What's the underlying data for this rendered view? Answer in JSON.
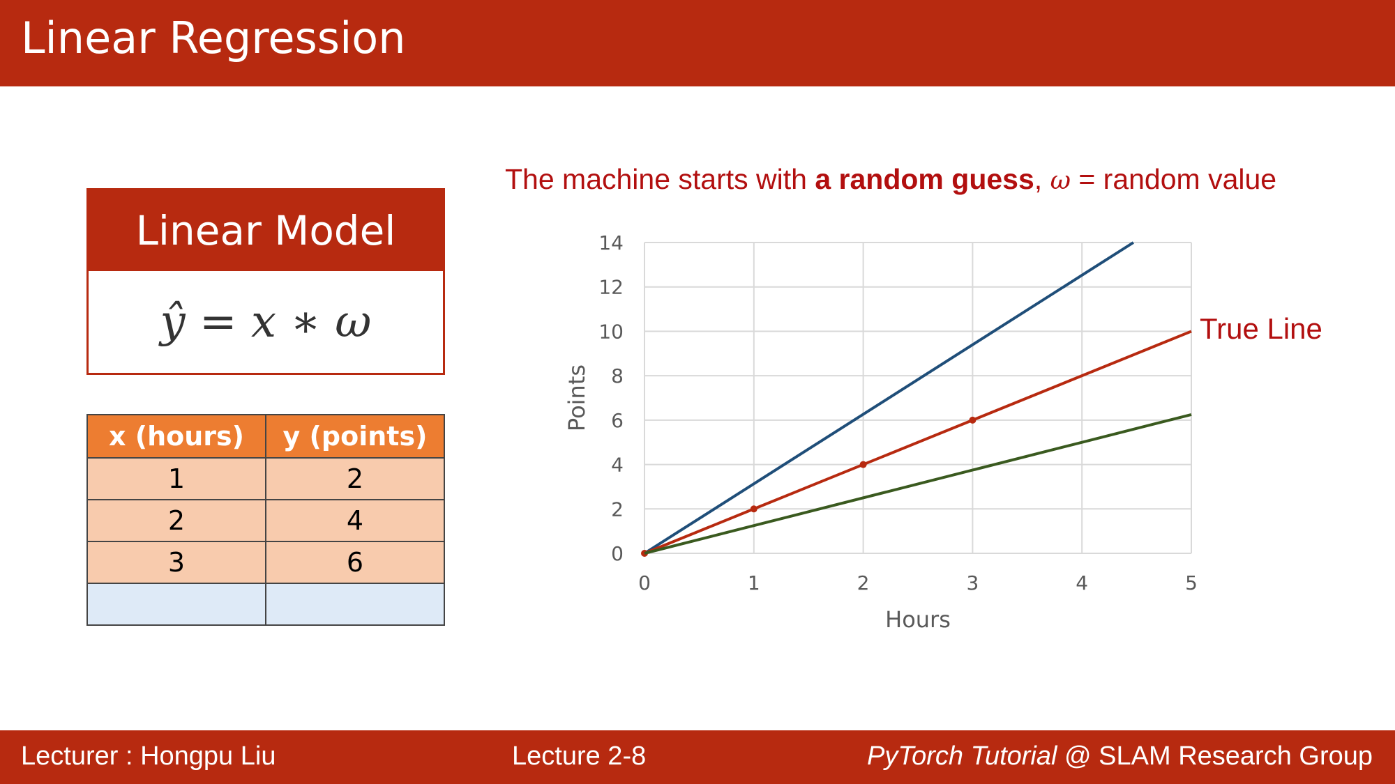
{
  "slide": {
    "title": "Linear Regression"
  },
  "model": {
    "header": "Linear Model",
    "equation": "ŷ = x ∗ ω"
  },
  "table": {
    "headers": [
      "x (hours)",
      "y (points)"
    ],
    "rows": [
      [
        "1",
        "2"
      ],
      [
        "2",
        "4"
      ],
      [
        "3",
        "6"
      ],
      [
        "",
        ""
      ]
    ]
  },
  "caption": {
    "part1": "The machine starts with ",
    "bold": "a random guess",
    "part2": ", ",
    "omega": "ω",
    "part3": " = random value"
  },
  "chart_data": {
    "type": "line",
    "xlabel": "Hours",
    "ylabel": "Points",
    "xlim": [
      0,
      5
    ],
    "ylim": [
      0,
      14
    ],
    "xticks": [
      0,
      1,
      2,
      3,
      4,
      5
    ],
    "yticks": [
      0,
      2,
      4,
      6,
      8,
      10,
      12,
      14
    ],
    "grid": true,
    "series": [
      {
        "x": [
          0,
          4.47
        ],
        "y": [
          0,
          14
        ],
        "color": "#1f4e79",
        "markers": false
      },
      {
        "name": "True Line",
        "x": [
          0,
          1,
          2,
          3,
          5
        ],
        "y": [
          0,
          2,
          4,
          6,
          10
        ],
        "color": "#b72a10",
        "markers": true,
        "marker_x": [
          0,
          1,
          2,
          3
        ]
      },
      {
        "x": [
          0,
          5
        ],
        "y": [
          0,
          6.25
        ],
        "color": "#3a5a1f",
        "markers": false
      }
    ],
    "annotation": "True Line"
  },
  "footer": {
    "lecturer": "Lecturer : Hongpu Liu",
    "lecture": "Lecture 2-8",
    "course_italic": "PyTorch Tutorial",
    "course_rest": " @ SLAM Research Group"
  }
}
